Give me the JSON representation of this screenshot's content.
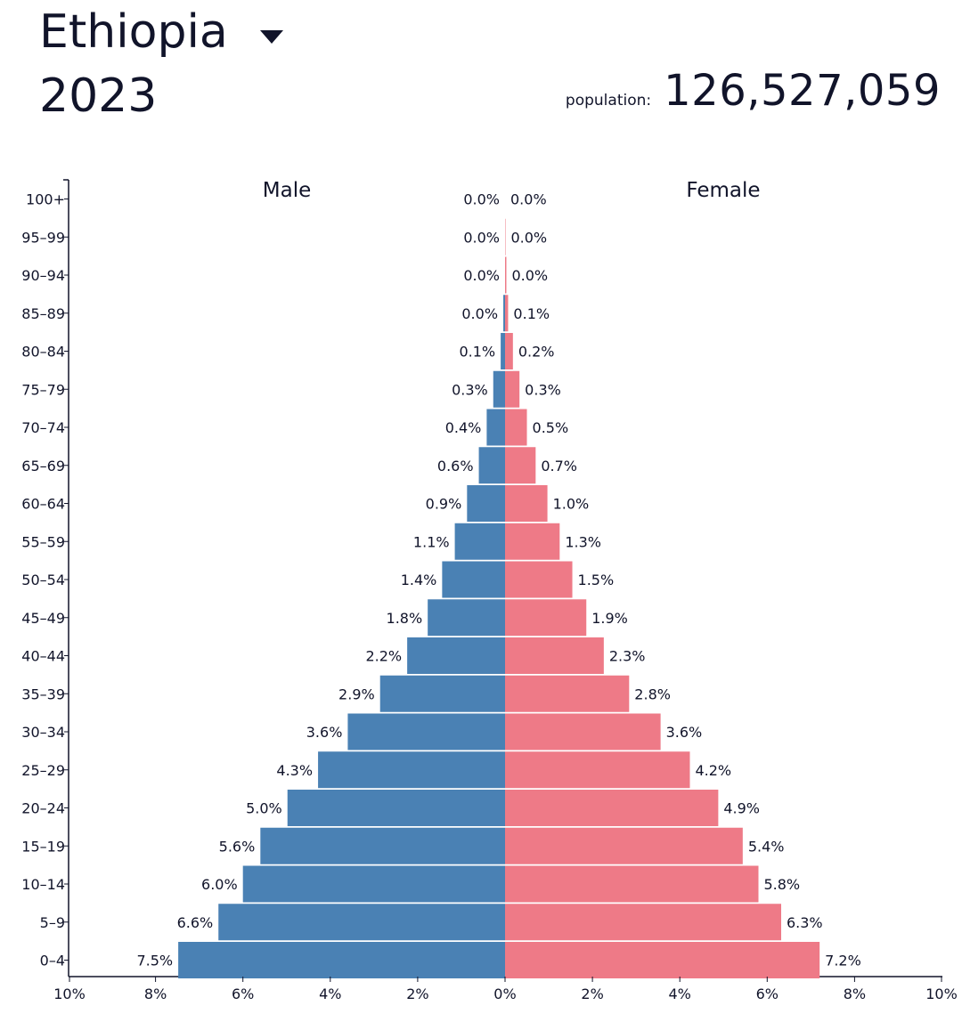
{
  "header": {
    "country": "Ethiopia",
    "year": "2023",
    "population_label": "population:",
    "population_value": "126,527,059",
    "dropdown_icon": "triangle-down-icon"
  },
  "chart_data": {
    "type": "bar",
    "orientation": "horizontal-population-pyramid",
    "categories": [
      "100+",
      "95–99",
      "90–94",
      "85–89",
      "80–84",
      "75–79",
      "70–74",
      "65–69",
      "60–64",
      "55–59",
      "50–54",
      "45–49",
      "40–44",
      "35–39",
      "30–34",
      "25–29",
      "20–24",
      "15–19",
      "10–14",
      "5–9",
      "0–4"
    ],
    "series": [
      {
        "name": "Male",
        "color": "#4a81b4",
        "values": [
          0.0,
          0.0,
          0.0,
          0.04,
          0.1,
          0.27,
          0.42,
          0.6,
          0.87,
          1.15,
          1.44,
          1.77,
          2.24,
          2.86,
          3.6,
          4.28,
          4.98,
          5.6,
          6.0,
          6.56,
          7.48
        ],
        "labels": [
          "0.0%",
          "0.0%",
          "0.0%",
          "0.0%",
          "0.1%",
          "0.3%",
          "0.4%",
          "0.6%",
          "0.9%",
          "1.1%",
          "1.4%",
          "1.8%",
          "2.2%",
          "2.9%",
          "3.6%",
          "4.3%",
          "5.0%",
          "5.6%",
          "6.0%",
          "6.6%",
          "7.5%"
        ]
      },
      {
        "name": "Female",
        "color": "#ee7a87",
        "values": [
          0.0,
          0.01,
          0.03,
          0.07,
          0.18,
          0.33,
          0.5,
          0.7,
          0.97,
          1.25,
          1.54,
          1.86,
          2.26,
          2.84,
          3.56,
          4.23,
          4.88,
          5.44,
          5.8,
          6.32,
          7.2
        ],
        "labels": [
          "0.0%",
          "0.0%",
          "0.0%",
          "0.1%",
          "0.2%",
          "0.3%",
          "0.5%",
          "0.7%",
          "1.0%",
          "1.3%",
          "1.5%",
          "1.9%",
          "2.3%",
          "2.8%",
          "3.6%",
          "4.2%",
          "4.9%",
          "5.4%",
          "5.8%",
          "6.3%",
          "7.2%"
        ]
      }
    ],
    "x_ticks": [
      "10%",
      "8%",
      "6%",
      "4%",
      "2%",
      "0%",
      "2%",
      "4%",
      "6%",
      "8%",
      "10%"
    ],
    "xlim": [
      -10,
      10
    ],
    "grid": false
  }
}
